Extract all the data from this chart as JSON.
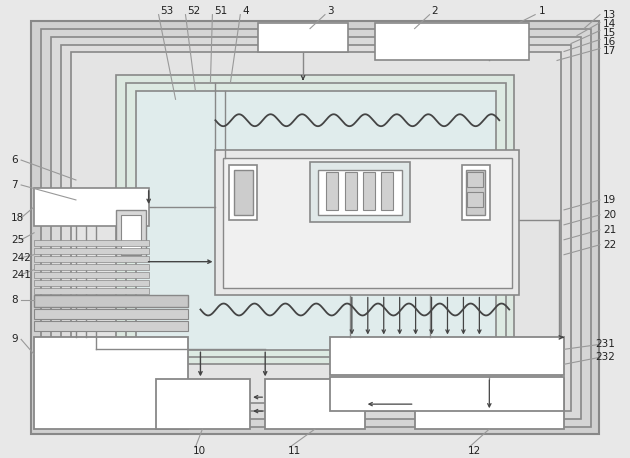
{
  "bg_color": "#e8e8e8",
  "line_color": "#888888",
  "dark_line": "#444444",
  "white_fill": "#ffffff",
  "light_fill": "#eeeeee",
  "mid_fill": "#d8d8d8",
  "figsize": [
    6.3,
    4.58
  ],
  "dpi": 100,
  "label_fontsize": 7.5,
  "label_color": "#222222"
}
